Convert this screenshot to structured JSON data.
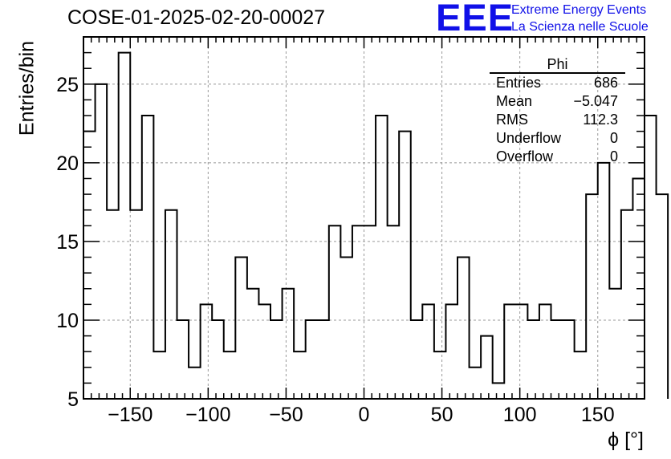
{
  "header": {
    "run_title": "COSE-01-2025-02-20-00027",
    "logo_text": "EEE",
    "logo_line1": "Extreme Energy Events",
    "logo_line2": "La Scienza nelle Scuole"
  },
  "stats": {
    "name": "Phi",
    "rows": [
      {
        "label": "Entries",
        "value": "686"
      },
      {
        "label": "Mean",
        "value": "−5.047"
      },
      {
        "label": "RMS",
        "value": "112.3"
      },
      {
        "label": "Underflow",
        "value": "0"
      },
      {
        "label": "Overflow",
        "value": "0"
      }
    ]
  },
  "chart_data": {
    "type": "histogram",
    "title": "COSE-01-2025-02-20-00027",
    "xlabel": "ϕ [°]",
    "ylabel": "Entries/bin",
    "xlim": [
      -180,
      180
    ],
    "ylim": [
      5,
      28
    ],
    "bin_width": 7.5,
    "bin_edges_start": -180,
    "values": [
      22,
      25,
      17,
      27,
      17,
      23,
      8,
      17,
      10,
      7,
      11,
      10,
      8,
      14,
      12,
      11,
      10,
      12,
      8,
      10,
      10,
      16,
      14,
      16,
      16,
      23,
      16,
      22,
      10,
      11,
      8,
      11,
      14,
      7,
      9,
      6,
      11,
      11,
      10,
      11,
      10,
      10,
      8,
      18,
      20,
      12,
      17,
      19,
      23,
      18
    ],
    "xticks": [
      -150,
      -100,
      -50,
      0,
      50,
      100,
      150
    ],
    "xtick_labels": [
      "−150",
      "−100",
      "−50",
      "0",
      "50",
      "100",
      "150"
    ],
    "yticks": [
      5,
      10,
      15,
      20,
      25
    ],
    "ytick_labels": [
      "5",
      "10",
      "15",
      "20",
      "25"
    ],
    "grid": true,
    "colors": {
      "line": "#000000",
      "grid": "#999999",
      "logo": "#1010e8"
    }
  }
}
